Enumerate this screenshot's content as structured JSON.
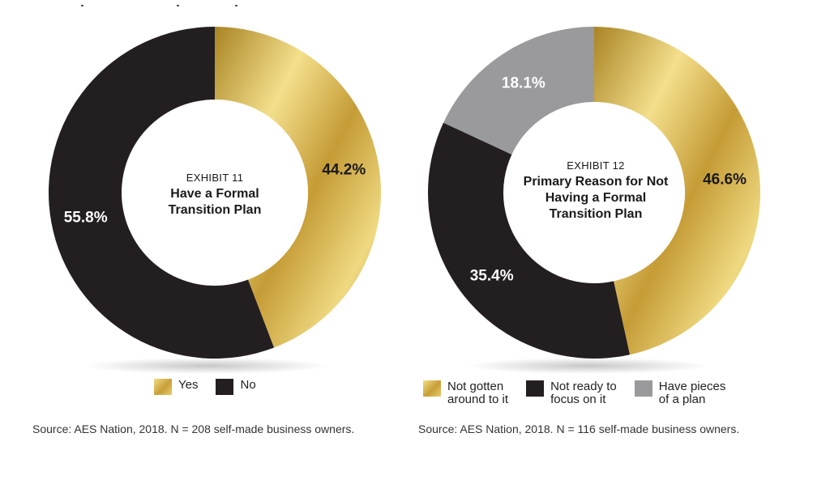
{
  "chart_data": [
    {
      "type": "pie",
      "variant": "donut",
      "exhibit": "EXHIBIT 11",
      "title": "Have a Formal Transition Plan",
      "categories": [
        "Yes",
        "No"
      ],
      "values": [
        44.2,
        55.8
      ],
      "value_labels": [
        "44.2%",
        "55.8%"
      ],
      "colors": [
        "#d4b24a",
        "#231f20"
      ],
      "label_colors": [
        "#1a1a1a",
        "#ffffff"
      ],
      "legend": [
        "Yes",
        "No"
      ],
      "legend_position": "bottom",
      "source": "Source: AES Nation, 2018. N = 208 self-made business owners."
    },
    {
      "type": "pie",
      "variant": "donut",
      "exhibit": "EXHIBIT 12",
      "title": "Primary Reason for Not Having a Formal Transition Plan",
      "categories": [
        "Not gotten around to it",
        "Not ready to focus on it",
        "Have pieces of a plan"
      ],
      "values": [
        46.6,
        35.4,
        18.1
      ],
      "value_labels": [
        "46.6%",
        "35.4%",
        "18.1%"
      ],
      "colors": [
        "#d4b24a",
        "#231f20",
        "#9a9a9c"
      ],
      "label_colors": [
        "#1a1a1a",
        "#ffffff",
        "#ffffff"
      ],
      "legend": [
        "Not gotten\naround to it",
        "Not ready to\nfocus on it",
        "Have pieces\nof a plan"
      ],
      "legend_position": "bottom",
      "source": "Source: AES Nation, 2018. N = 116 self-made business owners."
    }
  ]
}
